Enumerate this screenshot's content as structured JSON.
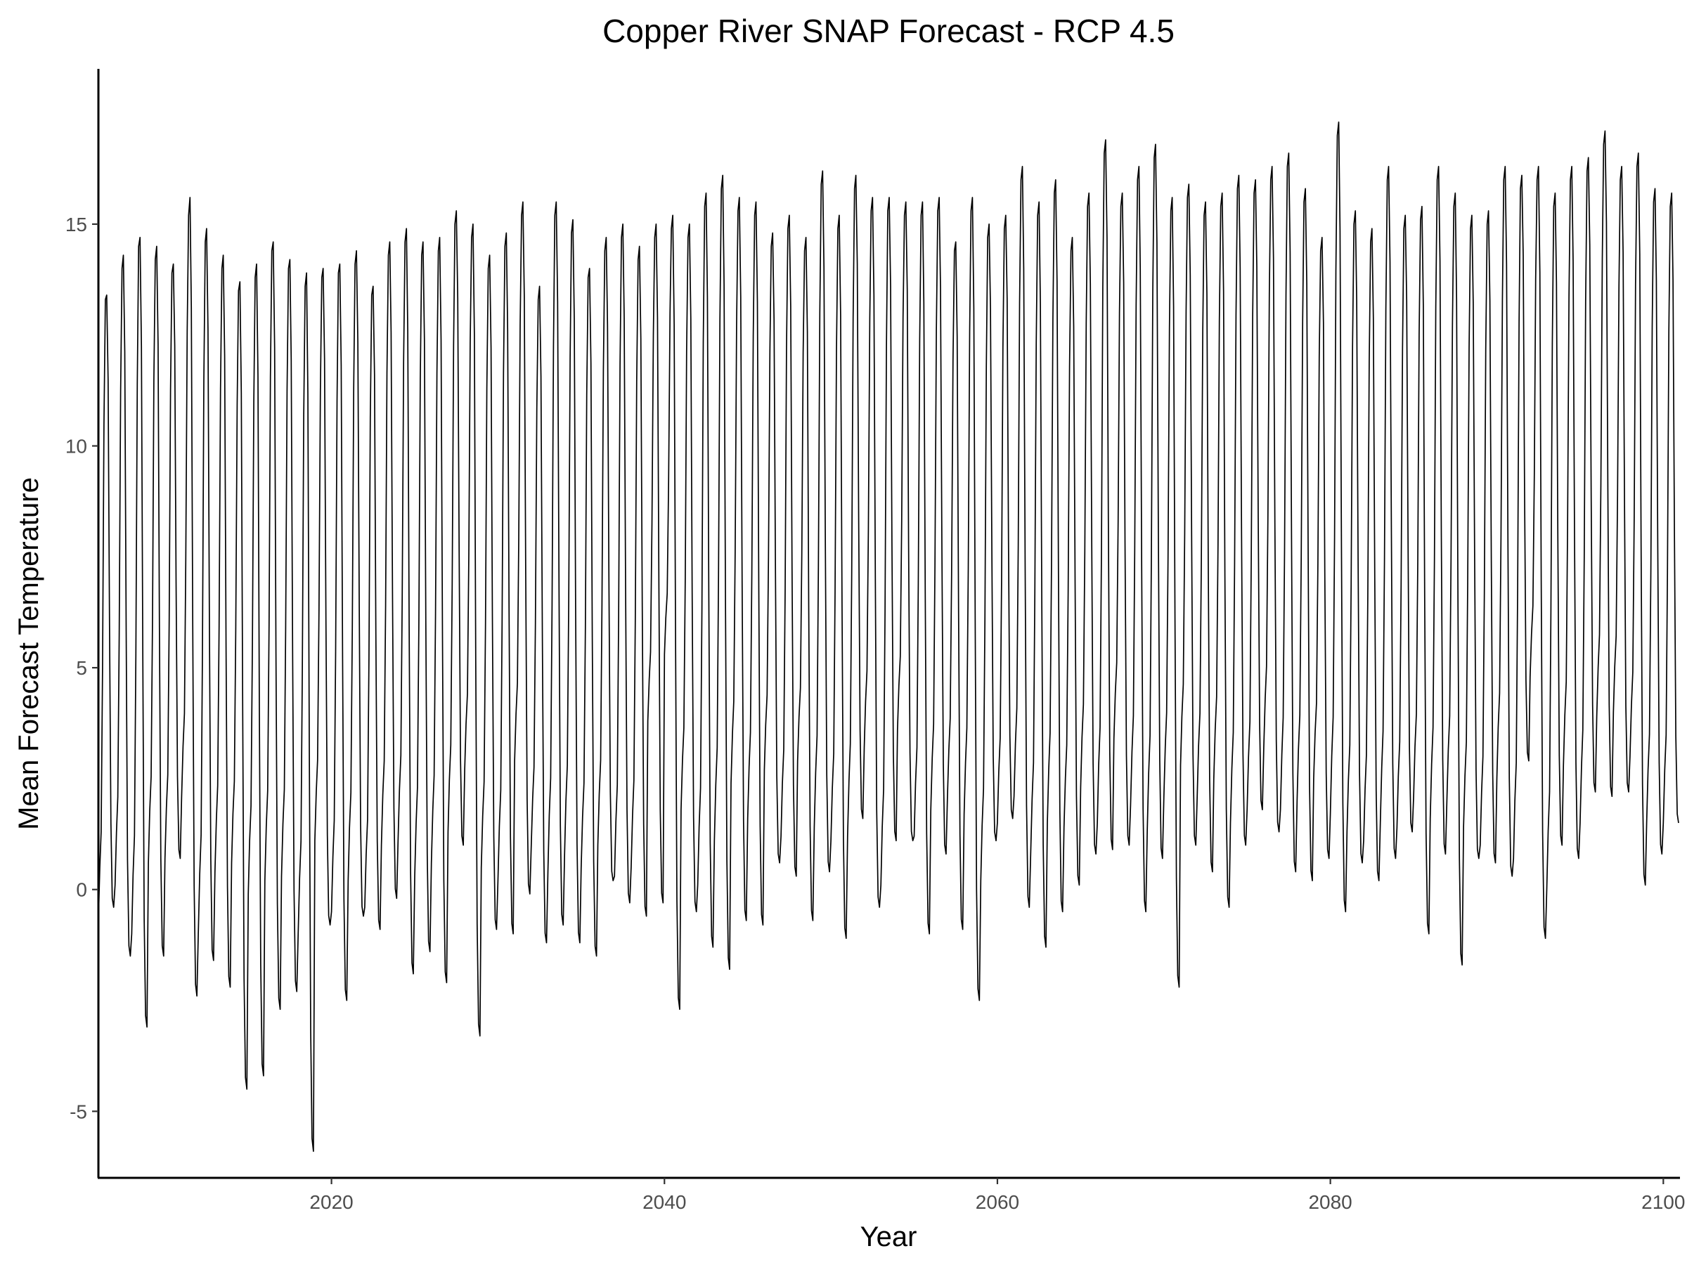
{
  "chart_data": {
    "type": "line",
    "title": "Copper River SNAP Forecast - RCP 4.5",
    "xlabel": "Year",
    "ylabel": "Mean Forecast Temperature",
    "xlim": [
      2006,
      2101
    ],
    "ylim": [
      -6.5,
      18.5
    ],
    "x_ticks": [
      2020,
      2040,
      2060,
      2080,
      2100
    ],
    "y_ticks": [
      -5,
      0,
      5,
      10,
      15
    ],
    "grid": false,
    "legend": "none",
    "line_color": "#000000",
    "sampling": "monthly",
    "series_start": 2006.0,
    "monthly_pattern": [
      -0.7,
      0.5,
      1.3,
      5.0,
      10.5,
      13.3,
      13.4,
      11.5,
      6.0,
      1.5,
      -0.2,
      -0.4
    ],
    "annual": [
      {
        "year": 2006,
        "jan": -0.7,
        "jun": 13.3,
        "jul": 13.4,
        "dec": -0.4
      },
      {
        "year": 2007,
        "jan": 0.1,
        "jun": 14.0,
        "jul": 14.3,
        "dec": -1.5
      },
      {
        "year": 2008,
        "jan": -1.0,
        "jun": 14.5,
        "jul": 14.7,
        "dec": -3.1
      },
      {
        "year": 2009,
        "jan": 0.6,
        "jun": 14.2,
        "jul": 14.5,
        "dec": -1.5
      },
      {
        "year": 2010,
        "jan": 0.7,
        "jun": 13.9,
        "jul": 14.1,
        "dec": 0.7
      },
      {
        "year": 2011,
        "jan": 2.1,
        "jun": 15.2,
        "jul": 15.6,
        "dec": -2.4
      },
      {
        "year": 2012,
        "jan": -1.0,
        "jun": 14.6,
        "jul": 14.9,
        "dec": -1.6
      },
      {
        "year": 2013,
        "jan": 0.4,
        "jun": 14.0,
        "jul": 14.3,
        "dec": -2.2
      },
      {
        "year": 2014,
        "jan": 0.6,
        "jun": 13.5,
        "jul": 13.7,
        "dec": -4.5
      },
      {
        "year": 2015,
        "jan": -0.1,
        "jun": 13.8,
        "jul": 14.1,
        "dec": -4.2
      },
      {
        "year": 2016,
        "jan": 0.2,
        "jun": 14.4,
        "jul": 14.6,
        "dec": -2.7
      },
      {
        "year": 2017,
        "jan": 0.3,
        "jun": 14.0,
        "jul": 14.2,
        "dec": -2.3
      },
      {
        "year": 2018,
        "jan": -1.0,
        "jun": 13.6,
        "jul": 13.9,
        "dec": -5.9
      },
      {
        "year": 2019,
        "jan": 1.1,
        "jun": 13.8,
        "jul": 14.0,
        "dec": -0.8
      },
      {
        "year": 2020,
        "jan": -0.5,
        "jun": 13.9,
        "jul": 14.1,
        "dec": -2.5
      },
      {
        "year": 2021,
        "jan": 0.2,
        "jun": 14.1,
        "jul": 14.4,
        "dec": -0.6
      },
      {
        "year": 2022,
        "jan": -0.4,
        "jun": 13.4,
        "jul": 13.6,
        "dec": -0.9
      },
      {
        "year": 2023,
        "jan": 1.0,
        "jun": 14.3,
        "jul": 14.6,
        "dec": -0.2
      },
      {
        "year": 2024,
        "jan": 1.1,
        "jun": 14.6,
        "jul": 14.9,
        "dec": -1.9
      },
      {
        "year": 2025,
        "jan": 0.3,
        "jun": 14.3,
        "jul": 14.6,
        "dec": -1.4
      },
      {
        "year": 2026,
        "jan": 0.6,
        "jun": 14.4,
        "jul": 14.7,
        "dec": -2.1
      },
      {
        "year": 2027,
        "jan": 1.3,
        "jun": 15.0,
        "jul": 15.3,
        "dec": 1.0
      },
      {
        "year": 2028,
        "jan": 2.7,
        "jun": 14.7,
        "jul": 15.0,
        "dec": -3.3
      },
      {
        "year": 2029,
        "jan": 0.5,
        "jun": 14.0,
        "jul": 14.3,
        "dec": -0.9
      },
      {
        "year": 2030,
        "jan": 0.2,
        "jun": 14.5,
        "jul": 14.8,
        "dec": -1.0
      },
      {
        "year": 2031,
        "jan": 2.9,
        "jun": 15.2,
        "jul": 15.5,
        "dec": -0.1
      },
      {
        "year": 2032,
        "jan": 1.0,
        "jun": 13.3,
        "jul": 13.6,
        "dec": -1.2
      },
      {
        "year": 2033,
        "jan": 0.4,
        "jun": 15.2,
        "jul": 15.5,
        "dec": -0.8
      },
      {
        "year": 2034,
        "jan": 0.8,
        "jun": 14.8,
        "jul": 15.1,
        "dec": -1.2
      },
      {
        "year": 2035,
        "jan": 0.5,
        "jun": 13.8,
        "jul": 14.0,
        "dec": -1.5
      },
      {
        "year": 2036,
        "jan": 1.0,
        "jun": 14.4,
        "jul": 14.7,
        "dec": 0.2
      },
      {
        "year": 2037,
        "jan": 0.3,
        "jun": 14.7,
        "jul": 15.0,
        "dec": -0.3
      },
      {
        "year": 2038,
        "jan": 0.5,
        "jun": 14.2,
        "jul": 14.5,
        "dec": -0.6
      },
      {
        "year": 2039,
        "jan": 3.8,
        "jun": 14.7,
        "jul": 15.0,
        "dec": -0.3
      },
      {
        "year": 2040,
        "jan": 5.3,
        "jun": 14.9,
        "jul": 15.2,
        "dec": -2.7
      },
      {
        "year": 2041,
        "jan": 1.8,
        "jun": 14.7,
        "jul": 15.0,
        "dec": -0.5
      },
      {
        "year": 2042,
        "jan": 0.1,
        "jun": 15.4,
        "jul": 15.7,
        "dec": -1.3
      },
      {
        "year": 2043,
        "jan": 1.1,
        "jun": 15.8,
        "jul": 16.1,
        "dec": -1.8
      },
      {
        "year": 2044,
        "jan": 2.4,
        "jun": 15.3,
        "jul": 15.6,
        "dec": -0.7
      },
      {
        "year": 2045,
        "jan": 1.6,
        "jun": 15.2,
        "jul": 15.5,
        "dec": -0.8
      },
      {
        "year": 2046,
        "jan": 2.7,
        "jun": 14.5,
        "jul": 14.8,
        "dec": 0.6
      },
      {
        "year": 2047,
        "jan": 1.2,
        "jun": 14.9,
        "jul": 15.2,
        "dec": 0.3
      },
      {
        "year": 2048,
        "jan": 2.9,
        "jun": 14.4,
        "jul": 14.7,
        "dec": -0.7
      },
      {
        "year": 2049,
        "jan": 1.4,
        "jun": 15.9,
        "jul": 16.2,
        "dec": 0.4
      },
      {
        "year": 2050,
        "jan": 1.1,
        "jun": 14.9,
        "jul": 15.2,
        "dec": -1.1
      },
      {
        "year": 2051,
        "jan": 1.2,
        "jun": 15.8,
        "jul": 16.1,
        "dec": 1.6
      },
      {
        "year": 2052,
        "jan": 3.2,
        "jun": 15.3,
        "jul": 15.6,
        "dec": -0.4
      },
      {
        "year": 2053,
        "jan": 0.1,
        "jun": 15.3,
        "jul": 15.6,
        "dec": 1.1
      },
      {
        "year": 2054,
        "jan": 3.6,
        "jun": 15.2,
        "jul": 15.5,
        "dec": 1.1
      },
      {
        "year": 2055,
        "jan": 1.2,
        "jun": 15.2,
        "jul": 15.5,
        "dec": -1.0
      },
      {
        "year": 2056,
        "jan": 1.8,
        "jun": 15.3,
        "jul": 15.6,
        "dec": 0.8
      },
      {
        "year": 2057,
        "jan": 2.1,
        "jun": 14.4,
        "jul": 14.6,
        "dec": -0.9
      },
      {
        "year": 2058,
        "jan": 1.7,
        "jun": 15.3,
        "jul": 15.6,
        "dec": -2.5
      },
      {
        "year": 2059,
        "jan": 0.2,
        "jun": 14.7,
        "jul": 15.0,
        "dec": 1.1
      },
      {
        "year": 2060,
        "jan": 1.5,
        "jun": 14.9,
        "jul": 15.2,
        "dec": 1.6
      },
      {
        "year": 2061,
        "jan": 2.1,
        "jun": 16.0,
        "jul": 16.3,
        "dec": -0.4
      },
      {
        "year": 2062,
        "jan": 0.8,
        "jun": 15.2,
        "jul": 15.5,
        "dec": -1.3
      },
      {
        "year": 2063,
        "jan": 1.5,
        "jun": 15.7,
        "jul": 16.0,
        "dec": -0.5
      },
      {
        "year": 2064,
        "jan": 1.4,
        "jun": 14.4,
        "jul": 14.7,
        "dec": 0.1
      },
      {
        "year": 2065,
        "jan": 2.3,
        "jun": 15.4,
        "jul": 15.7,
        "dec": 0.8
      },
      {
        "year": 2066,
        "jan": 1.5,
        "jun": 16.6,
        "jul": 16.9,
        "dec": 0.9
      },
      {
        "year": 2067,
        "jan": 3.4,
        "jun": 15.4,
        "jul": 15.7,
        "dec": 1.0
      },
      {
        "year": 2068,
        "jan": 1.9,
        "jun": 16.0,
        "jul": 16.3,
        "dec": -0.5
      },
      {
        "year": 2069,
        "jan": 1.3,
        "jun": 16.5,
        "jul": 16.8,
        "dec": 0.7
      },
      {
        "year": 2070,
        "jan": 2.1,
        "jun": 15.3,
        "jul": 15.6,
        "dec": -2.2
      },
      {
        "year": 2071,
        "jan": 2.8,
        "jun": 15.6,
        "jul": 15.9,
        "dec": 1.0
      },
      {
        "year": 2072,
        "jan": 2.1,
        "jun": 15.2,
        "jul": 15.5,
        "dec": 0.4
      },
      {
        "year": 2073,
        "jan": 2.5,
        "jun": 15.4,
        "jul": 15.7,
        "dec": -0.4
      },
      {
        "year": 2074,
        "jan": 1.5,
        "jun": 15.8,
        "jul": 16.1,
        "dec": 1.0
      },
      {
        "year": 2075,
        "jan": 1.8,
        "jun": 15.7,
        "jul": 16.0,
        "dec": 1.8
      },
      {
        "year": 2076,
        "jan": 3.2,
        "jun": 16.0,
        "jul": 16.3,
        "dec": 1.3
      },
      {
        "year": 2077,
        "jan": 1.8,
        "jun": 16.3,
        "jul": 16.6,
        "dec": 0.4
      },
      {
        "year": 2078,
        "jan": 2.0,
        "jun": 15.5,
        "jul": 15.8,
        "dec": 0.2
      },
      {
        "year": 2079,
        "jan": 2.5,
        "jun": 14.4,
        "jul": 14.7,
        "dec": 0.7
      },
      {
        "year": 2080,
        "jan": 1.7,
        "jun": 17.0,
        "jul": 17.3,
        "dec": -0.5
      },
      {
        "year": 2081,
        "jan": 1.3,
        "jun": 15.0,
        "jul": 15.3,
        "dec": 0.6
      },
      {
        "year": 2082,
        "jan": 1.1,
        "jun": 14.6,
        "jul": 14.9,
        "dec": 0.2
      },
      {
        "year": 2083,
        "jan": 1.5,
        "jun": 16.0,
        "jul": 16.3,
        "dec": 0.7
      },
      {
        "year": 2084,
        "jan": 1.4,
        "jun": 14.9,
        "jul": 15.2,
        "dec": 1.3
      },
      {
        "year": 2085,
        "jan": 2.1,
        "jun": 15.1,
        "jul": 15.4,
        "dec": -1.0
      },
      {
        "year": 2086,
        "jan": 1.6,
        "jun": 16.0,
        "jul": 16.3,
        "dec": 0.8
      },
      {
        "year": 2087,
        "jan": 2.0,
        "jun": 15.4,
        "jul": 15.7,
        "dec": -1.7
      },
      {
        "year": 2088,
        "jan": 1.4,
        "jun": 14.9,
        "jul": 15.2,
        "dec": 0.7
      },
      {
        "year": 2089,
        "jan": 1.0,
        "jun": 15.0,
        "jul": 15.3,
        "dec": 0.6
      },
      {
        "year": 2090,
        "jan": 2.5,
        "jun": 16.0,
        "jul": 16.3,
        "dec": 0.3
      },
      {
        "year": 2091,
        "jan": 0.7,
        "jun": 15.8,
        "jul": 16.1,
        "dec": 2.9
      },
      {
        "year": 2092,
        "jan": 4.8,
        "jun": 16.0,
        "jul": 16.3,
        "dec": -1.1
      },
      {
        "year": 2093,
        "jan": 0.0,
        "jun": 15.4,
        "jul": 15.7,
        "dec": 1.0
      },
      {
        "year": 2094,
        "jan": 2.8,
        "jun": 16.0,
        "jul": 16.3,
        "dec": 0.7
      },
      {
        "year": 2095,
        "jan": 1.5,
        "jun": 16.2,
        "jul": 16.5,
        "dec": 2.2
      },
      {
        "year": 2096,
        "jan": 3.9,
        "jun": 16.8,
        "jul": 17.1,
        "dec": 2.1
      },
      {
        "year": 2097,
        "jan": 4.0,
        "jun": 16.0,
        "jul": 16.3,
        "dec": 2.2
      },
      {
        "year": 2098,
        "jan": 3.0,
        "jun": 16.3,
        "jul": 16.6,
        "dec": 0.1
      },
      {
        "year": 2099,
        "jan": 1.5,
        "jun": 15.5,
        "jul": 15.8,
        "dec": 0.8
      },
      {
        "year": 2100,
        "jan": 1.5,
        "jun": 15.4,
        "jul": 15.7,
        "dec": 1.5
      }
    ]
  }
}
